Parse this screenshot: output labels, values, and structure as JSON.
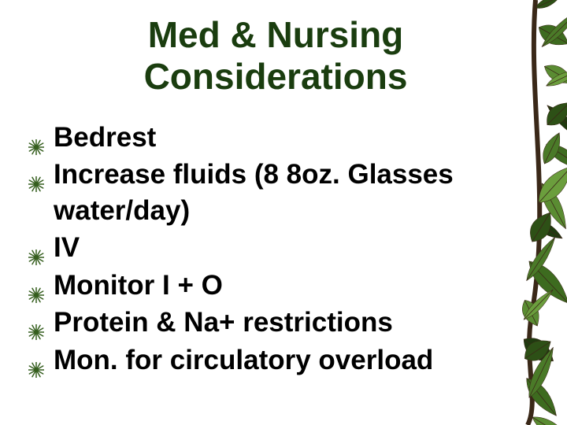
{
  "title": {
    "text": "Med & Nursing Considerations",
    "color": "#1a3d0f",
    "fontsize": 46
  },
  "bullet_style": {
    "color": "#355e1e",
    "type": "starburst"
  },
  "body_fontsize": 35,
  "bullets": [
    "Bedrest",
    "Increase fluids (8 8oz. Glasses water/day)",
    "IV",
    "Monitor I + O",
    "Protein & Na+ restrictions",
    "Mon. for circulatory overload"
  ],
  "leaves": {
    "stem_color": "#3a2818",
    "leaf_colors": [
      "#2d5016",
      "#3d6b1f",
      "#4a7a28",
      "#5a8c32",
      "#6b9e3d",
      "#1f3a0f"
    ],
    "count": 22
  }
}
